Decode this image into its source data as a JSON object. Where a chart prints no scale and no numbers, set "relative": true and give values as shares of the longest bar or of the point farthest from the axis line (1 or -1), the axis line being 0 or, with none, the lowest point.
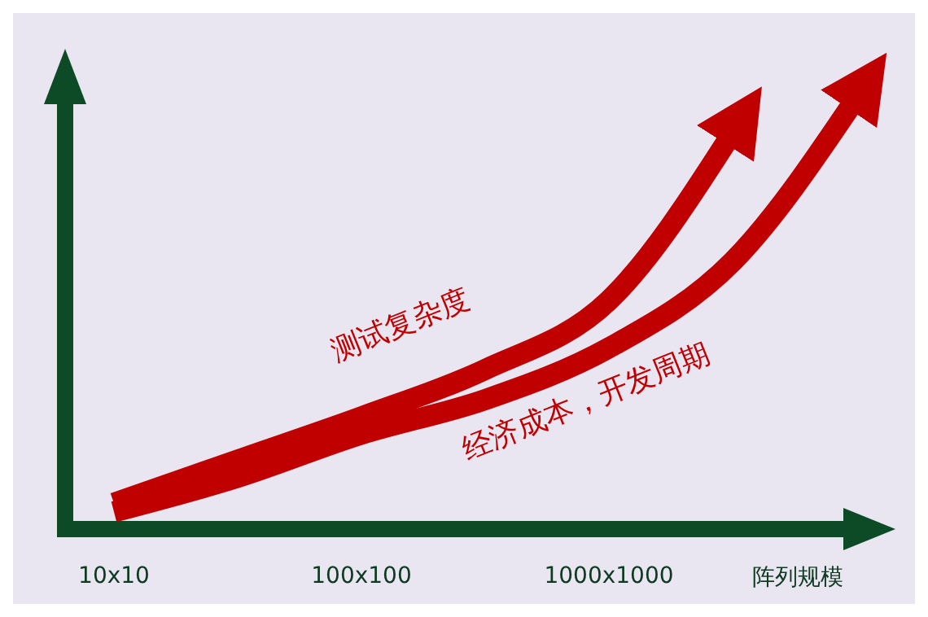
{
  "chart_data": {
    "type": "line",
    "relative": true,
    "xlabel": "阵列规模",
    "categories": [
      "10x10",
      null,
      "100x100",
      null,
      "1000x1000",
      null,
      null
    ],
    "series": [
      {
        "name": "测试复杂度",
        "color": "#c00000",
        "values": [
          0.06,
          0.16,
          0.26,
          0.37,
          0.53,
          0.92,
          null
        ]
      },
      {
        "name": "经济成本，开发周期",
        "color": "#c00000",
        "values": [
          0.04,
          0.12,
          0.22,
          0.3,
          0.42,
          0.62,
          1.0
        ]
      }
    ],
    "legend": false,
    "grid": false,
    "line_style": "solid"
  }
}
